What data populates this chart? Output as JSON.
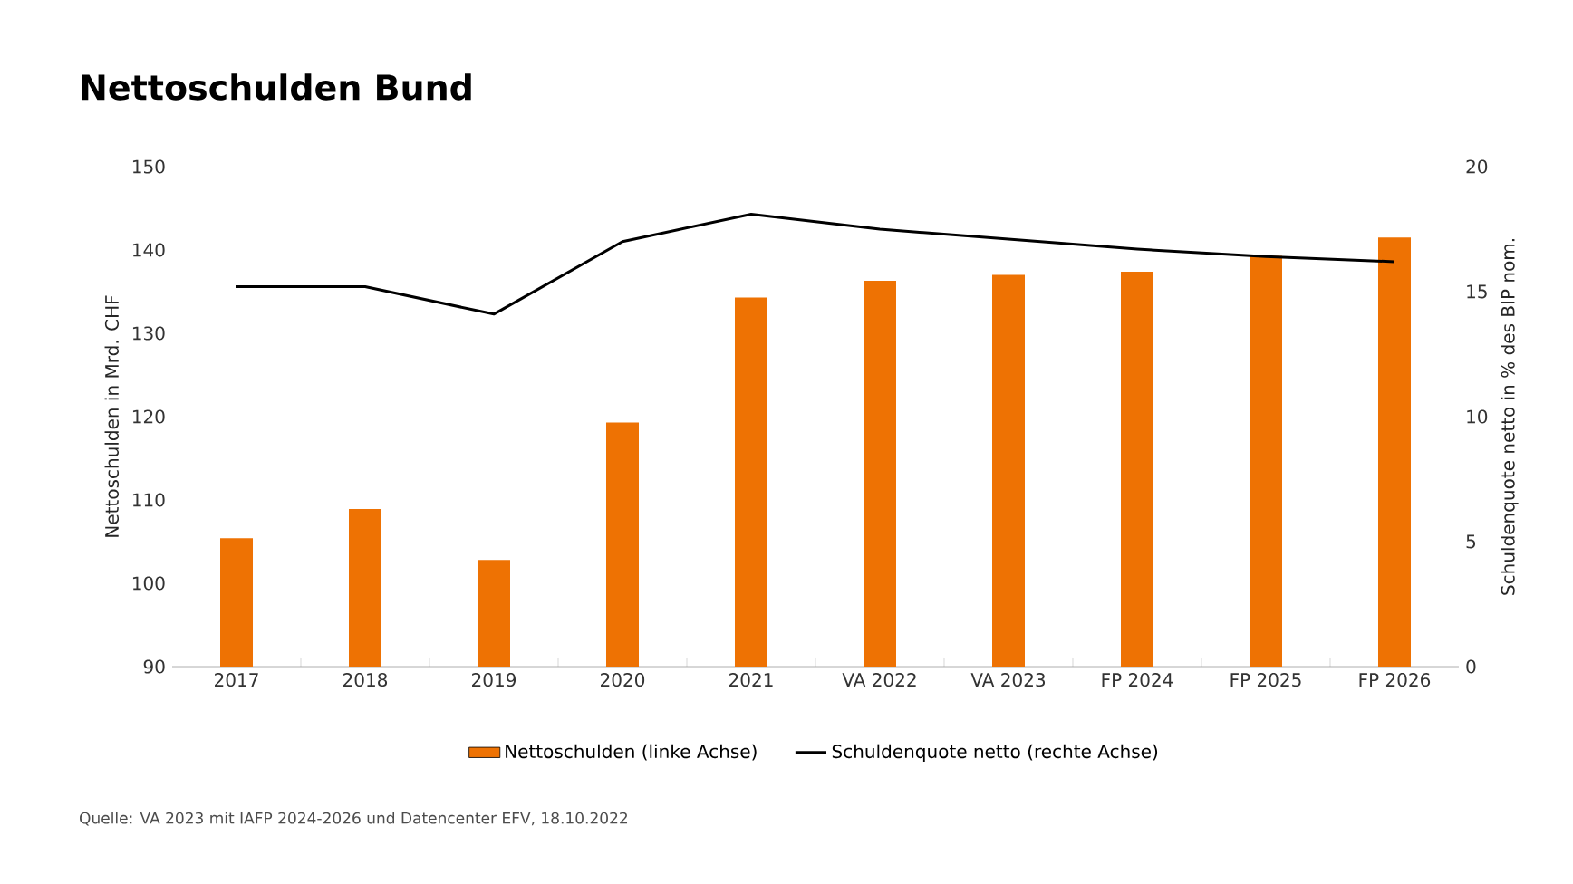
{
  "chart_data": {
    "type": "bar",
    "title": "Nettoschulden Bund",
    "ylabel": "Nettoschulden in Mrd. CHF",
    "y2label": "Schuldenquote netto in % des BIP nom.",
    "categories": [
      "2017",
      "2018",
      "2019",
      "2020",
      "2021",
      "VA 2022",
      "VA 2023",
      "FP 2024",
      "FP 2025",
      "FP 2026"
    ],
    "series": [
      {
        "name": "Nettoschulden (linke Achse)",
        "color": "#ee7203",
        "values": [
          105.4,
          108.9,
          102.8,
          119.3,
          134.3,
          136.3,
          137.0,
          137.4,
          139.3,
          141.5
        ]
      },
      {
        "name": "Schuldenquote netto (rechte Achse)",
        "type": "line",
        "axis": "y2",
        "color": "#000000",
        "values": [
          15.2,
          15.2,
          14.1,
          17.0,
          18.1,
          17.5,
          17.1,
          16.7,
          16.4,
          16.2
        ]
      }
    ],
    "ylim": [
      90,
      150
    ],
    "yticks": [
      90,
      100,
      110,
      120,
      130,
      140,
      150
    ],
    "y2lim": [
      0,
      20
    ],
    "y2ticks": [
      0,
      5,
      10,
      15,
      20
    ],
    "legend": "bottom",
    "grid": false,
    "marker": "none",
    "line_style": "solid",
    "annotations": [
      "Quelle: VA 2023 mit IAFP 2024-2026 und Datencenter EFV, 18.10.2022"
    ]
  }
}
